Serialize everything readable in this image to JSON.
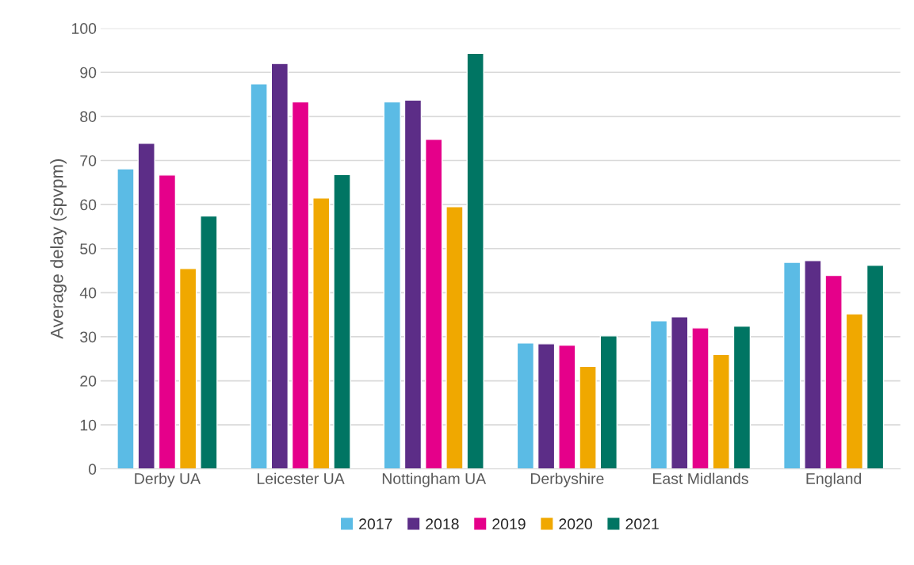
{
  "chart_data": {
    "type": "bar",
    "ylabel": "Average delay (spvpm)",
    "categories": [
      "Derby UA",
      "Leicester UA",
      "Nottingham UA",
      "Derbyshire",
      "East Midlands",
      "England"
    ],
    "series": [
      {
        "name": "2017",
        "color": "#5bbbe5",
        "values": [
          68.1,
          87.4,
          83.3,
          28.6,
          33.6,
          46.9
        ]
      },
      {
        "name": "2018",
        "color": "#5c2d87",
        "values": [
          73.9,
          92.0,
          83.7,
          28.4,
          34.5,
          47.3
        ]
      },
      {
        "name": "2019",
        "color": "#e5008a",
        "values": [
          66.7,
          83.3,
          74.8,
          28.1,
          32.0,
          43.9
        ]
      },
      {
        "name": "2020",
        "color": "#f0a800",
        "values": [
          45.5,
          61.5,
          59.5,
          23.3,
          26.0,
          35.2
        ]
      },
      {
        "name": "2021",
        "color": "#007563",
        "values": [
          57.4,
          66.8,
          94.3,
          30.2,
          32.4,
          46.2
        ]
      }
    ],
    "ylim": [
      0,
      100
    ],
    "yticks": [
      0,
      10,
      20,
      30,
      40,
      50,
      60,
      70,
      80,
      90,
      100
    ],
    "grid": "y",
    "legend": "bottom"
  }
}
